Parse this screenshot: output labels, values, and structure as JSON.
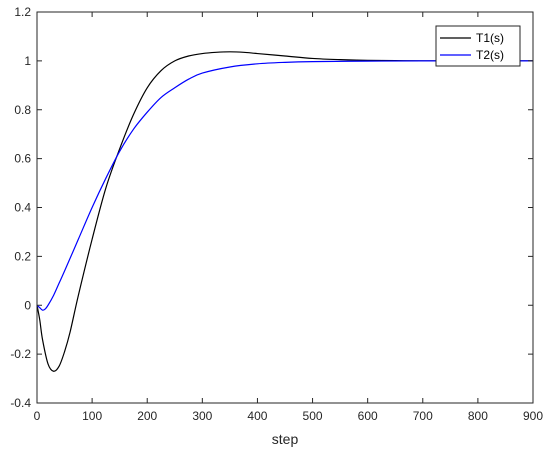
{
  "chart_data": {
    "type": "line",
    "title": "",
    "xlabel": "step",
    "ylabel": "",
    "xlim": [
      0,
      900
    ],
    "ylim": [
      -0.4,
      1.2
    ],
    "xticks": [
      0,
      100,
      200,
      300,
      400,
      500,
      600,
      700,
      800,
      900
    ],
    "yticks": [
      -0.4,
      -0.2,
      0,
      0.2,
      0.4,
      0.6,
      0.8,
      1,
      1.2
    ],
    "xtick_labels": [
      "0",
      "100",
      "200",
      "300",
      "400",
      "500",
      "600",
      "700",
      "800",
      "900"
    ],
    "ytick_labels": [
      "-0.4",
      "-0.2",
      "0",
      "0.2",
      "0.4",
      "0.6",
      "0.8",
      "1",
      "1.2"
    ],
    "grid": false,
    "legend_position": "top-right",
    "series": [
      {
        "name": "T1(s)",
        "color": "#000000",
        "x": [
          0,
          5,
          10,
          20,
          30,
          40,
          50,
          60,
          75,
          100,
          125,
          150,
          175,
          200,
          225,
          250,
          275,
          300,
          325,
          350,
          375,
          400,
          450,
          500,
          550,
          600,
          650,
          700,
          800,
          900
        ],
        "y": [
          0,
          -0.06,
          -0.14,
          -0.24,
          -0.27,
          -0.25,
          -0.19,
          -0.11,
          0.04,
          0.27,
          0.48,
          0.64,
          0.78,
          0.89,
          0.96,
          1.0,
          1.02,
          1.03,
          1.035,
          1.037,
          1.035,
          1.03,
          1.02,
          1.01,
          1.005,
          1.002,
          1.001,
          1.0,
          1.0,
          1.0
        ]
      },
      {
        "name": "T2(s)",
        "color": "#0000ff",
        "x": [
          0,
          5,
          10,
          15,
          20,
          30,
          40,
          50,
          75,
          100,
          125,
          150,
          175,
          200,
          225,
          250,
          275,
          300,
          350,
          400,
          450,
          500,
          600,
          700,
          800,
          900
        ],
        "y": [
          0,
          -0.01,
          -0.02,
          -0.015,
          0.0,
          0.04,
          0.09,
          0.14,
          0.27,
          0.4,
          0.52,
          0.63,
          0.72,
          0.79,
          0.85,
          0.89,
          0.925,
          0.95,
          0.975,
          0.988,
          0.994,
          0.997,
          0.999,
          1.0,
          1.0,
          1.0
        ]
      }
    ]
  }
}
